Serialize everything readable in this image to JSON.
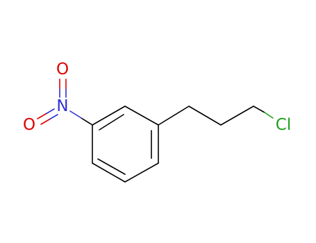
{
  "atoms": [
    {
      "label": "O"
    },
    {
      "label": "N"
    },
    {
      "label": "O"
    },
    {
      "label": "Cl"
    }
  ]
}
